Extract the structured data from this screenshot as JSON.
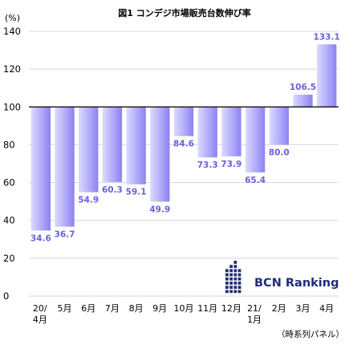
{
  "chart_data": {
    "type": "bar",
    "title": "図1 コンデジ市場販売台数伸び率",
    "ylabel": "(%)",
    "ylim": [
      0,
      140
    ],
    "yticks": [
      0,
      20,
      40,
      60,
      80,
      100,
      120,
      140
    ],
    "baseline": 100,
    "grid": true,
    "categories": [
      [
        "20/",
        "4月"
      ],
      [
        "5月"
      ],
      [
        "6月"
      ],
      [
        "7月"
      ],
      [
        "8月"
      ],
      [
        "9月"
      ],
      [
        "10月"
      ],
      [
        "11月"
      ],
      [
        "12月"
      ],
      [
        "21/",
        "1月"
      ],
      [
        "2月"
      ],
      [
        "3月"
      ],
      [
        "4月"
      ]
    ],
    "values": [
      34.6,
      36.7,
      54.9,
      60.3,
      59.1,
      49.9,
      84.6,
      73.3,
      73.9,
      65.4,
      80.0,
      106.5,
      133.1
    ],
    "labels": [
      "34.6",
      "36.7",
      "54.9",
      "60.3",
      "59.1",
      "49.9",
      "84.6",
      "73.3",
      "73.9",
      "65.4",
      "80.0",
      "106.5",
      "133.1"
    ],
    "colors": {
      "bar_light": "#e4e3ff",
      "bar_dark": "#8c82f0",
      "label": "#6b5fe0",
      "brand": "#1e2e78"
    }
  },
  "note": "（時系列パネル）",
  "brand": {
    "name": "BCN Ranking"
  }
}
